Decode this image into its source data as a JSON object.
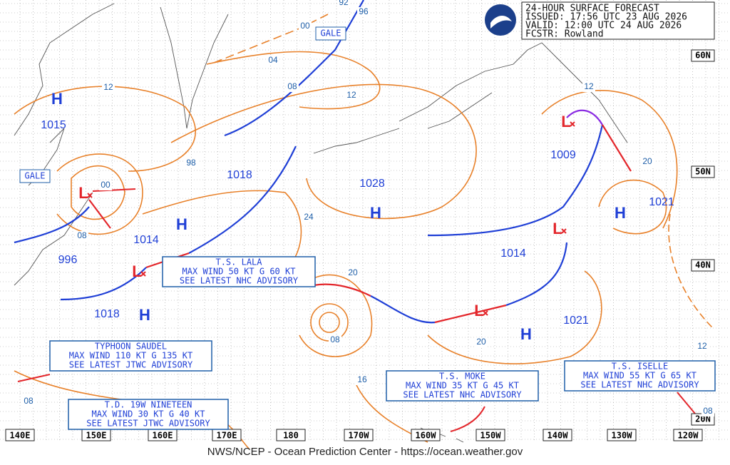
{
  "header": {
    "lines": [
      "24-HOUR SURFACE FORECAST",
      "ISSUED: 17:56 UTC 23 AUG 2026",
      "VALID:  12:00 UTC 24 AUG 2026",
      "FCSTR:  Rowland"
    ]
  },
  "footer": "NWS/NCEP - Ocean Prediction Center - https://ocean.weather.gov",
  "longitudes": [
    "140E",
    "150E",
    "160E",
    "170E",
    "180",
    "170W",
    "160W",
    "150W",
    "140W",
    "130W",
    "120W"
  ],
  "latitudes": [
    "60N",
    "50N",
    "40N",
    "20N"
  ],
  "centers": [
    "H",
    "L",
    "H",
    "L",
    "H",
    "H",
    "L",
    "H",
    "L",
    "L",
    "H"
  ],
  "pressure_labels": [
    "1015",
    "996",
    "1014",
    "1018",
    "1018",
    "1028",
    "1009",
    "1021",
    "1014",
    "1021"
  ],
  "isobar_labels": [
    "12",
    "04",
    "08",
    "12",
    "00",
    "96",
    "92",
    "98",
    "00",
    "08",
    "24",
    "20",
    "08",
    "16",
    "20",
    "12",
    "20",
    "12",
    "08",
    "08"
  ],
  "gale_labels": [
    "GALE",
    "GALE"
  ],
  "advisories": [
    [
      "T.S. LALA",
      "MAX WIND 50 KT G 60 KT",
      "SEE LATEST NHC ADVISORY"
    ],
    [
      "TYPHOON SAUDEL",
      "MAX WIND 110 KT G 135 KT",
      "SEE LATEST JTWC ADVISORY"
    ],
    [
      "T.D. 19W NINETEEN",
      "MAX WIND 30 KT G 40 KT",
      "SEE LATEST JTWC ADVISORY"
    ],
    [
      "T.S. MOKE",
      "MAX WIND 35 KT G 45 KT",
      "SEE LATEST NHC ADVISORY"
    ],
    [
      "T.S.  ISELLE",
      "MAX WIND 55 KT G 65 KT",
      "SEE LATEST NHC ADVISORY"
    ]
  ]
}
